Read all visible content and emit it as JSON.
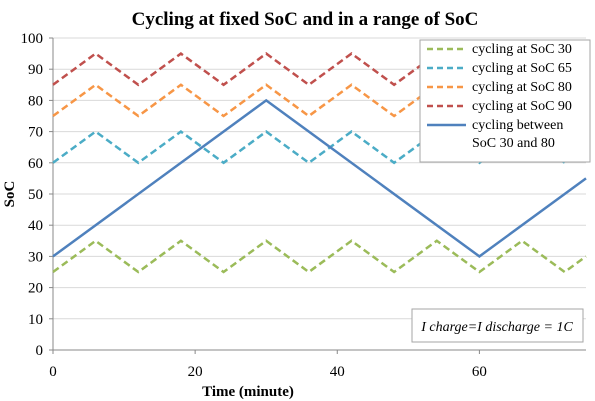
{
  "chart_data": {
    "type": "line",
    "title": "Cycling at fixed SoC and in a range of SoC",
    "xlabel": "Time (minute)",
    "ylabel": "SoC",
    "xlim": [
      0,
      75
    ],
    "ylim": [
      0,
      100
    ],
    "x_ticks": [
      0,
      20,
      40,
      60
    ],
    "y_ticks": [
      0,
      10,
      20,
      30,
      40,
      50,
      60,
      70,
      80,
      90,
      100
    ],
    "grid": "horizontal",
    "legend_position": "top-right",
    "annotation": "I charge=I discharge = 1C",
    "series": [
      {
        "name": "cycling at SoC 30",
        "color": "#9bbb59",
        "style": "dashed",
        "x": [
          0,
          6,
          12,
          18,
          24,
          30,
          36,
          42,
          48,
          54,
          60,
          66,
          72,
          75
        ],
        "y": [
          25,
          35,
          25,
          35,
          25,
          35,
          25,
          35,
          25,
          35,
          25,
          35,
          25,
          30
        ]
      },
      {
        "name": "cycling at SoC 65",
        "color": "#4bacc6",
        "style": "dashed",
        "x": [
          0,
          6,
          12,
          18,
          24,
          30,
          36,
          42,
          48,
          54,
          60,
          66,
          72,
          75
        ],
        "y": [
          60,
          70,
          60,
          70,
          60,
          70,
          60,
          70,
          60,
          70,
          60,
          70,
          60,
          65
        ]
      },
      {
        "name": "cycling at SoC 80",
        "color": "#f79646",
        "style": "dashed",
        "x": [
          0,
          6,
          12,
          18,
          24,
          30,
          36,
          42,
          48,
          54,
          60,
          66,
          72,
          75
        ],
        "y": [
          75,
          85,
          75,
          85,
          75,
          85,
          75,
          85,
          75,
          85,
          75,
          85,
          75,
          80
        ]
      },
      {
        "name": "cycling at SoC 90",
        "color": "#c0504d",
        "style": "dashed",
        "x": [
          0,
          6,
          12,
          18,
          24,
          30,
          36,
          42,
          48,
          54,
          60,
          66,
          72,
          75
        ],
        "y": [
          85,
          95,
          85,
          95,
          85,
          95,
          85,
          95,
          85,
          95,
          85,
          95,
          85,
          90
        ]
      },
      {
        "name": "cycling between SoC 30 and 80",
        "legend_lines": [
          "cycling between",
          "SoC 30 and 80"
        ],
        "color": "#4f81bd",
        "style": "solid",
        "x": [
          0,
          30,
          60,
          75
        ],
        "y": [
          30,
          80,
          30,
          55
        ]
      }
    ]
  }
}
